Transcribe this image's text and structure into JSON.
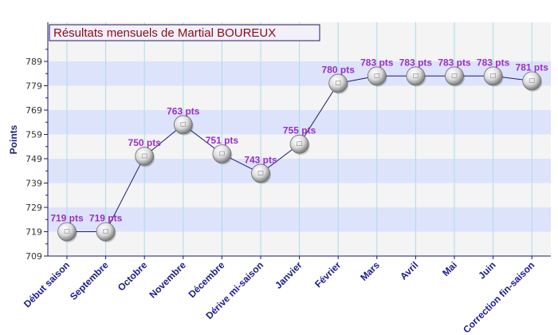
{
  "chart_data": {
    "type": "line",
    "title": "Résultats mensuels de Martial BOUREUX",
    "xlabel": "",
    "ylabel": "Points",
    "categories": [
      "Début saison",
      "Septembre",
      "Octobre",
      "Novembre",
      "Décembre",
      "Dérive mi-saison",
      "Janvier",
      "Février",
      "Mars",
      "Avril",
      "Mai",
      "Juin",
      "Correction fin-saison"
    ],
    "series": [
      {
        "values": [
          719,
          719,
          750,
          763,
          751,
          743,
          755,
          780,
          783,
          783,
          783,
          783,
          781
        ]
      }
    ],
    "data_labels": [
      "719 pts",
      "719 pts",
      "750 pts",
      "763 pts",
      "751 pts",
      "743 pts",
      "755 pts",
      "780 pts",
      "783 pts",
      "783 pts",
      "783 pts",
      "783 pts",
      "781 pts"
    ],
    "yticks": [
      709,
      719,
      729,
      739,
      749,
      759,
      769,
      779,
      789
    ],
    "ylim": [
      709,
      799
    ],
    "grid": true,
    "legend": "none",
    "colors": {
      "line": "#1a1a7a",
      "band_dark": "#dde3fb",
      "band_light": "#f4f4f4",
      "vgrid": "#a8dcec",
      "title_text": "#8b0a1a",
      "title_bg": "#f4f0fb",
      "title_border": "#1a1a6a",
      "label": "#9a2fc8",
      "axis_text": "#1b1b8f"
    }
  }
}
